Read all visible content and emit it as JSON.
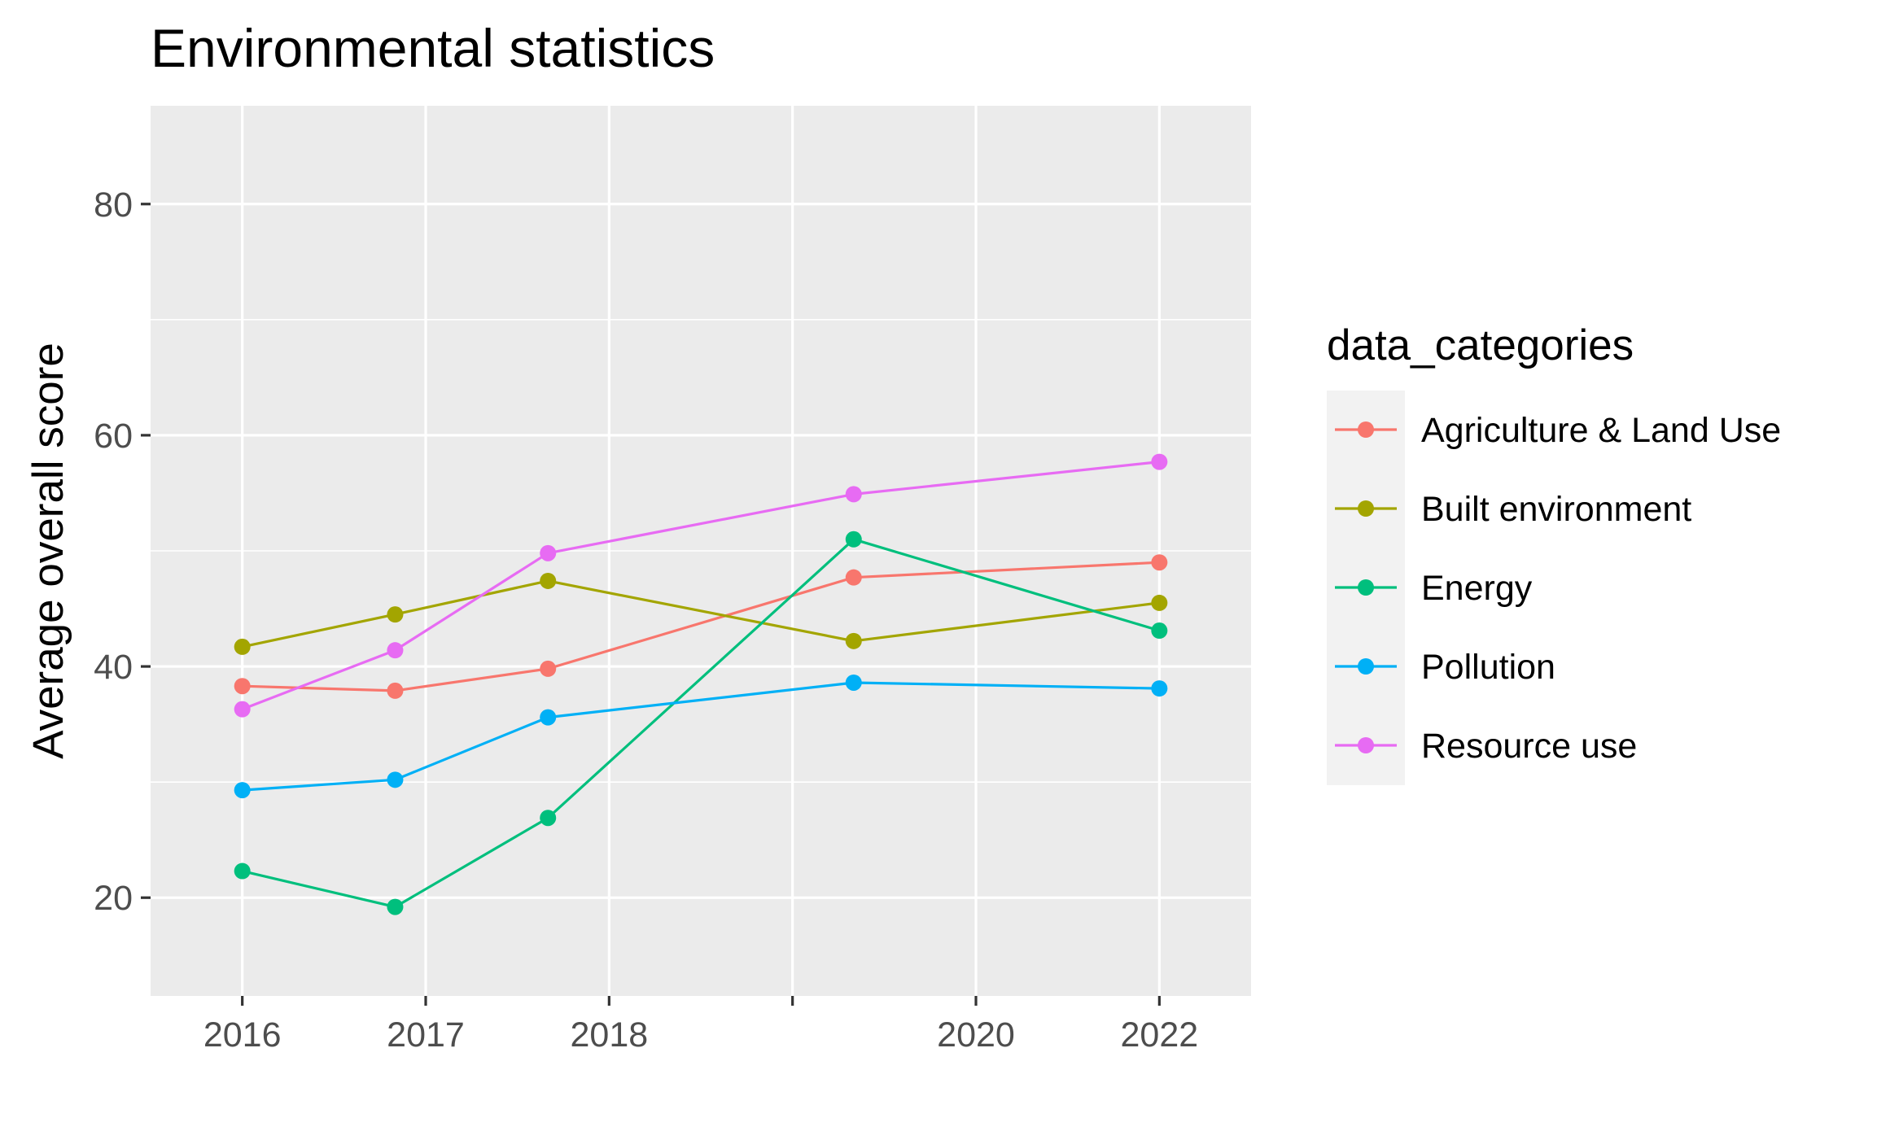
{
  "chart_data": {
    "type": "line",
    "title": "Environmental statistics",
    "xlabel": "",
    "ylabel": "Average overall score",
    "x": [
      2016,
      2017,
      2018,
      2020,
      2022
    ],
    "x_ticks": [
      "2016",
      "2017",
      "2018",
      "",
      "2020",
      "2022"
    ],
    "y_ticks": [
      "20",
      "40",
      "60",
      "80"
    ],
    "xlim": [
      2015.4,
      2022.6
    ],
    "ylim": [
      11.5,
      88.5
    ],
    "grid": true,
    "legend": {
      "title": "data_categories",
      "position": "right"
    },
    "series": [
      {
        "name": "Agriculture & Land Use",
        "color": "#F8766D",
        "values": [
          38.3,
          37.9,
          39.8,
          47.7,
          49.0
        ]
      },
      {
        "name": "Built environment",
        "color": "#A3A500",
        "values": [
          41.7,
          44.5,
          47.4,
          42.2,
          45.5
        ]
      },
      {
        "name": "Energy",
        "color": "#00BF7D",
        "values": [
          22.3,
          19.2,
          26.9,
          51.0,
          43.1
        ]
      },
      {
        "name": "Pollution",
        "color": "#00B0F6",
        "values": [
          29.3,
          30.2,
          35.6,
          38.6,
          38.1
        ]
      },
      {
        "name": "Resource use",
        "color": "#E76BF3",
        "values": [
          36.3,
          41.4,
          49.8,
          54.9,
          57.7
        ]
      }
    ]
  }
}
